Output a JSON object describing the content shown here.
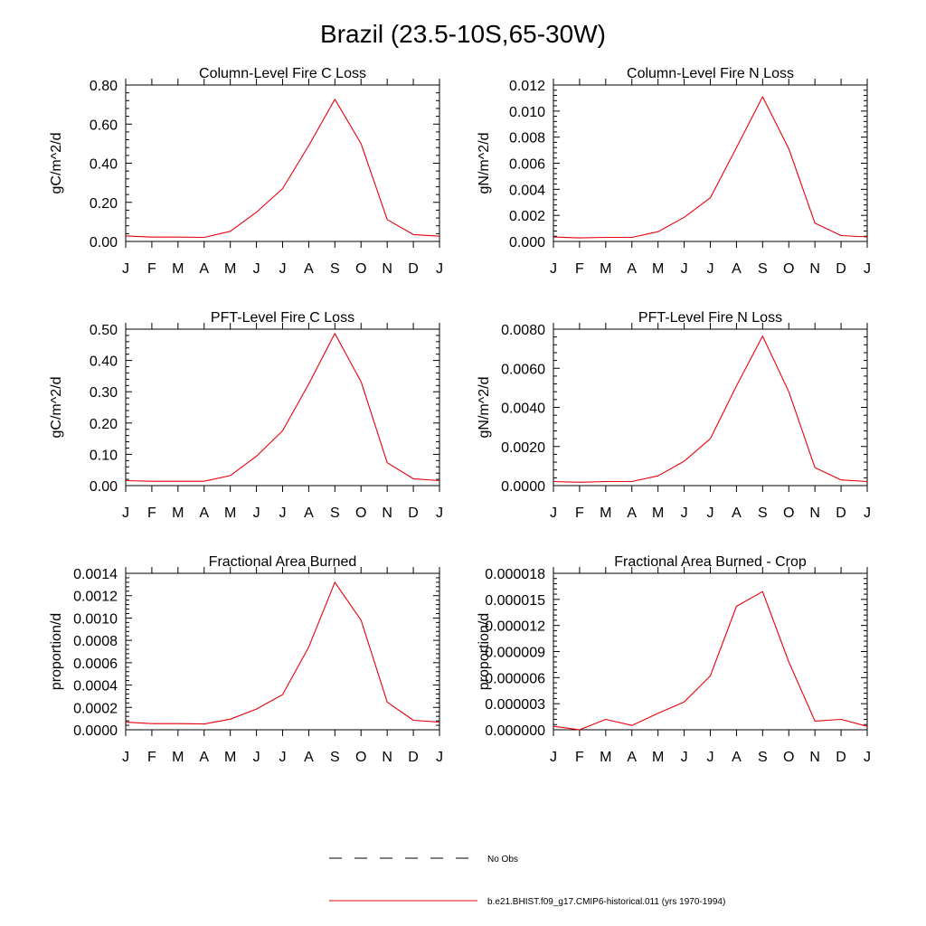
{
  "page": {
    "title": "Brazil (23.5-10S,65-30W)"
  },
  "colors": {
    "model": "#e8000b",
    "obs": "#000000",
    "axis": "#000000"
  },
  "legend": {
    "entries": [
      {
        "label": "No Obs",
        "style": "dashed",
        "color": "#000000"
      },
      {
        "label": "b.e21.BHIST.f09_g17.CMIP6-historical.011 (yrs 1970-1994)",
        "style": "solid",
        "color": "#e8000b"
      }
    ]
  },
  "chart_data": [
    {
      "type": "line",
      "title": "Column-Level Fire C Loss",
      "ylabel": "gC/m^2/d",
      "categories": [
        "J",
        "F",
        "M",
        "A",
        "M",
        "J",
        "J",
        "A",
        "S",
        "O",
        "N",
        "D",
        "J"
      ],
      "ylim": [
        0,
        0.8
      ],
      "yticks": [
        0,
        0.2,
        0.4,
        0.6,
        0.8
      ],
      "ytick_labels": [
        "0.00",
        "0.20",
        "0.40",
        "0.60",
        "0.80"
      ],
      "series": [
        {
          "values": [
            0.028,
            0.022,
            0.022,
            0.021,
            0.052,
            0.15,
            0.27,
            0.49,
            0.727,
            0.5,
            0.112,
            0.035,
            0.027
          ]
        }
      ]
    },
    {
      "type": "line",
      "title": "Column-Level Fire N Loss",
      "ylabel": "gN/m^2/d",
      "categories": [
        "J",
        "F",
        "M",
        "A",
        "M",
        "J",
        "J",
        "A",
        "S",
        "O",
        "N",
        "D",
        "J"
      ],
      "ylim": [
        0,
        0.012
      ],
      "yticks": [
        0,
        0.002,
        0.004,
        0.006,
        0.008,
        0.01,
        0.012
      ],
      "ytick_labels": [
        "0.000",
        "0.002",
        "0.004",
        "0.006",
        "0.008",
        "0.010",
        "0.012"
      ],
      "series": [
        {
          "values": [
            0.00034,
            0.00027,
            0.00031,
            0.00031,
            0.00075,
            0.00185,
            0.00335,
            0.0072,
            0.0111,
            0.0071,
            0.0014,
            0.00045,
            0.00035
          ]
        }
      ]
    },
    {
      "type": "line",
      "title": "PFT-Level Fire C Loss",
      "ylabel": "gC/m^2/d",
      "categories": [
        "J",
        "F",
        "M",
        "A",
        "M",
        "J",
        "J",
        "A",
        "S",
        "O",
        "N",
        "D",
        "J"
      ],
      "ylim": [
        0,
        0.5
      ],
      "yticks": [
        0,
        0.1,
        0.2,
        0.3,
        0.4,
        0.5
      ],
      "ytick_labels": [
        "0.00",
        "0.10",
        "0.20",
        "0.30",
        "0.40",
        "0.50"
      ],
      "series": [
        {
          "values": [
            0.016,
            0.014,
            0.014,
            0.014,
            0.032,
            0.094,
            0.175,
            0.325,
            0.486,
            0.332,
            0.073,
            0.022,
            0.016
          ]
        }
      ]
    },
    {
      "type": "line",
      "title": "PFT-Level Fire N Loss",
      "ylabel": "gN/m^2/d",
      "categories": [
        "J",
        "F",
        "M",
        "A",
        "M",
        "J",
        "J",
        "A",
        "S",
        "O",
        "N",
        "D",
        "J"
      ],
      "ylim": [
        0,
        0.008
      ],
      "yticks": [
        0,
        0.002,
        0.004,
        0.006,
        0.008
      ],
      "ytick_labels": [
        "0.0000",
        "0.0020",
        "0.0040",
        "0.0060",
        "0.0080"
      ],
      "series": [
        {
          "values": [
            0.00021,
            0.00017,
            0.00021,
            0.00021,
            0.0005,
            0.00125,
            0.0024,
            0.0051,
            0.00765,
            0.0048,
            0.00092,
            0.00029,
            0.00021
          ]
        }
      ]
    },
    {
      "type": "line",
      "title": "Fractional Area Burned",
      "ylabel": "proportion/d",
      "categories": [
        "J",
        "F",
        "M",
        "A",
        "M",
        "J",
        "J",
        "A",
        "S",
        "O",
        "N",
        "D",
        "J"
      ],
      "ylim": [
        0,
        0.0014
      ],
      "yticks": [
        0,
        0.0002,
        0.0004,
        0.0006,
        0.0008,
        0.001,
        0.0012,
        0.0014
      ],
      "ytick_labels": [
        "0.0000",
        "0.0002",
        "0.0004",
        "0.0006",
        "0.0008",
        "0.0010",
        "0.0012",
        "0.0014"
      ],
      "series": [
        {
          "values": [
            6.8e-05,
            5.5e-05,
            5.5e-05,
            5.2e-05,
            9.5e-05,
            0.000185,
            0.000315,
            0.00074,
            0.00132,
            0.00098,
            0.000248,
            8.5e-05,
            6.8e-05
          ]
        }
      ]
    },
    {
      "type": "line",
      "title": "Fractional Area Burned - Crop",
      "ylabel": "proportion/d",
      "categories": [
        "J",
        "F",
        "M",
        "A",
        "M",
        "J",
        "J",
        "A",
        "S",
        "O",
        "N",
        "D",
        "J"
      ],
      "ylim": [
        0,
        1.8e-05
      ],
      "yticks": [
        0,
        3e-06,
        6e-06,
        9e-06,
        1.2e-05,
        1.5e-05,
        1.8e-05
      ],
      "ytick_labels": [
        "0.000000",
        "0.000003",
        "0.000006",
        "0.000009",
        "0.000012",
        "0.000015",
        "0.000018"
      ],
      "series": [
        {
          "values": [
            4e-07,
            0.0,
            1.2e-06,
            5e-07,
            1.9e-06,
            3.2e-06,
            6.2e-06,
            1.42e-05,
            1.59e-05,
            7.8e-06,
            1e-06,
            1.2e-06,
            4e-07
          ]
        }
      ]
    }
  ]
}
